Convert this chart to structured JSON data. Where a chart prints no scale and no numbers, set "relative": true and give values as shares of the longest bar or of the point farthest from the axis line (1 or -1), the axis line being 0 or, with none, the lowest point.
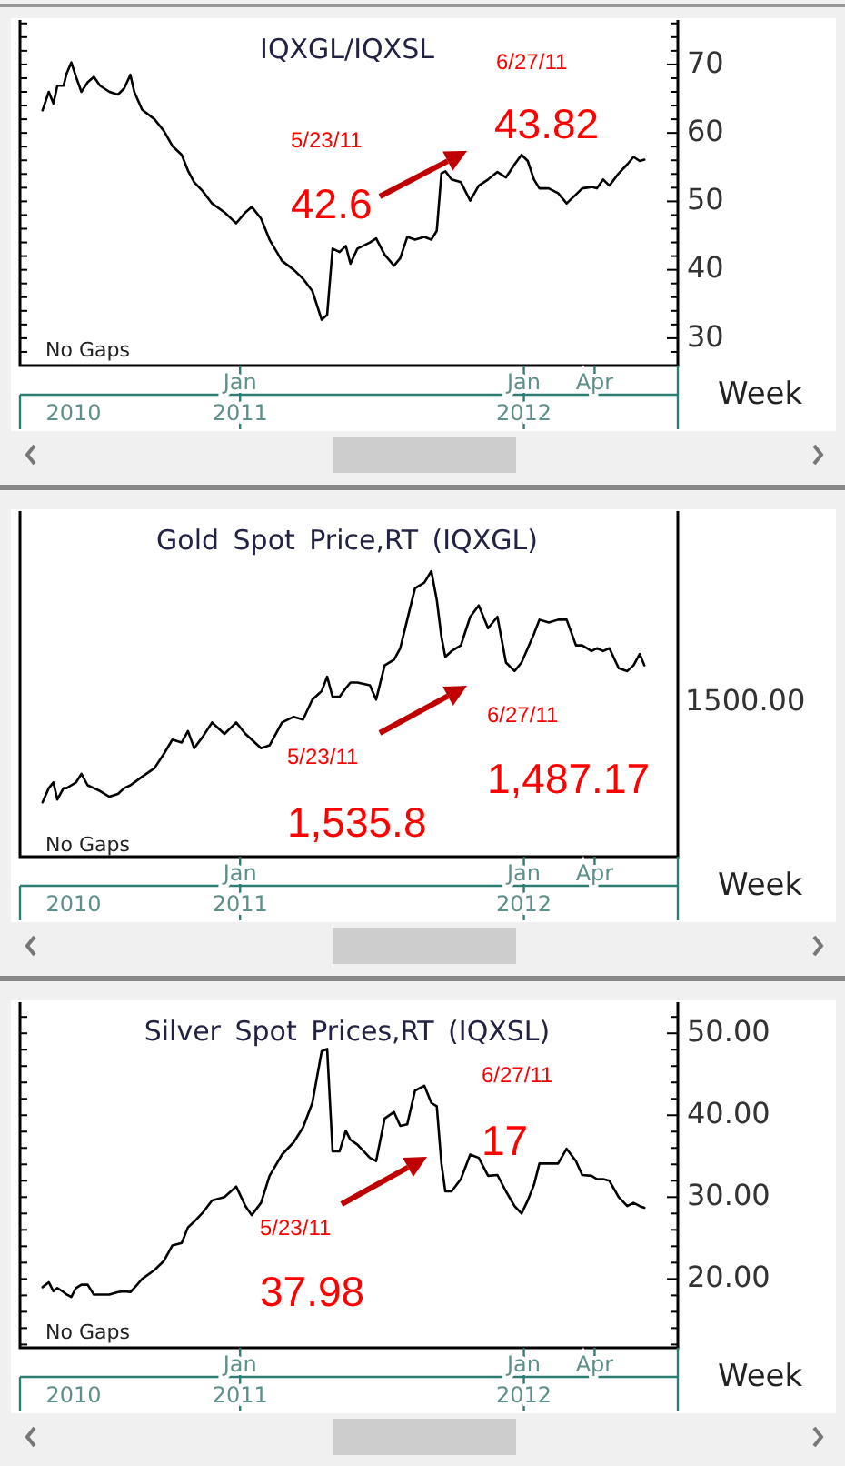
{
  "chart_data": [
    {
      "type": "line",
      "title": "IQXGL/IQXSL",
      "xlabel": "Week",
      "color": "#000000",
      "x": [
        "2010-04-22",
        "2010-04-30",
        "2010-05-06",
        "2010-05-11",
        "2010-05-19",
        "2010-05-23",
        "2010-05-29",
        "2010-06-04",
        "2010-06-11",
        "2010-06-19",
        "2010-06-27",
        "2010-07-05",
        "2010-07-17",
        "2010-07-28",
        "2010-08-05",
        "2010-08-13",
        "2010-08-18",
        "2010-08-28",
        "2010-09-13",
        "2010-09-25",
        "2010-10-06",
        "2010-10-18",
        "2010-10-26",
        "2010-11-03",
        "2010-11-14",
        "2010-11-26",
        "2010-12-12",
        "2010-12-27",
        "2011-01-08",
        "2011-01-16",
        "2011-01-28",
        "2011-02-08",
        "2011-02-24",
        "2011-03-11",
        "2011-03-23",
        "2011-04-04",
        "2011-04-16",
        "2011-04-23",
        "2011-04-30",
        "2011-05-09",
        "2011-05-17",
        "2011-05-23",
        "2011-06-01",
        "2011-06-17",
        "2011-06-25",
        "2011-07-06",
        "2011-07-18",
        "2011-07-26",
        "2011-08-04",
        "2011-08-14",
        "2011-08-26",
        "2011-09-04",
        "2011-09-11",
        "2011-09-17",
        "2011-09-22",
        "2011-09-30",
        "2011-10-12",
        "2011-10-24",
        "2011-11-04",
        "2011-11-16",
        "2011-11-28",
        "2011-12-09",
        "2011-12-20",
        "2011-12-29",
        "2012-01-06",
        "2012-01-14",
        "2012-01-21",
        "2012-02-02",
        "2012-02-14",
        "2012-02-25",
        "2012-03-08",
        "2012-03-16",
        "2012-03-28",
        "2012-04-04",
        "2012-04-12",
        "2012-04-20",
        "2012-05-02",
        "2012-05-13",
        "2012-05-21",
        "2012-05-29",
        "2012-06-04"
      ],
      "values": [
        63.3,
        66.0,
        64.3,
        66.9,
        66.9,
        68.7,
        70.3,
        68.2,
        66.0,
        67.4,
        68.2,
        66.9,
        66.0,
        65.6,
        66.5,
        68.5,
        66.0,
        63.4,
        62.0,
        60.3,
        58.1,
        56.8,
        54.5,
        52.8,
        51.5,
        49.7,
        48.4,
        46.8,
        48.4,
        49.2,
        47.5,
        44.4,
        41.3,
        40.0,
        38.7,
        36.9,
        32.7,
        33.4,
        43.1,
        42.6,
        43.5,
        40.9,
        43.1,
        44.0,
        44.6,
        42.2,
        40.6,
        41.7,
        44.8,
        44.4,
        44.8,
        44.4,
        45.7,
        54.1,
        54.4,
        53.2,
        52.8,
        50.1,
        52.3,
        53.2,
        54.3,
        53.5,
        55.4,
        56.8,
        55.9,
        53.2,
        51.9,
        51.9,
        51.2,
        49.7,
        51.0,
        51.9,
        52.1,
        51.9,
        53.2,
        52.3,
        54.1,
        55.4,
        56.5,
        55.9,
        56.1
      ],
      "xlim": [
        "2010-03-24",
        "2012-07-17"
      ],
      "xticks": [
        {
          "value": "2011-01-01",
          "label": "Jan"
        },
        {
          "value": "2012-01-01",
          "label": "Jan"
        },
        {
          "value": "2012-04-01",
          "label": "Apr"
        }
      ],
      "x2lim": [
        "2010-03-24",
        "2012-07-17"
      ],
      "x2ticks": [
        {
          "value": "2010-06-01",
          "label": "2010"
        },
        {
          "value": "2011-01-01",
          "label": "2011"
        },
        {
          "value": "2012-01-01",
          "label": "2012"
        }
      ],
      "ylim": [
        26,
        76.5
      ],
      "yticks": [
        {
          "value": 28,
          "label": null
        },
        30,
        {
          "value": 32,
          "label": null
        },
        {
          "value": 34,
          "label": null
        },
        {
          "value": 36,
          "label": null
        },
        {
          "value": 38,
          "label": null
        },
        40,
        {
          "value": 42,
          "label": null
        },
        {
          "value": 44,
          "label": null
        },
        {
          "value": 46,
          "label": null
        },
        {
          "value": 48,
          "label": null
        },
        50,
        {
          "value": 52,
          "label": null
        },
        {
          "value": 54,
          "label": null
        },
        {
          "value": 56,
          "label": null
        },
        {
          "value": 58,
          "label": null
        },
        60,
        {
          "value": 62,
          "label": null
        },
        {
          "value": 64,
          "label": null
        },
        {
          "value": 66,
          "label": null
        },
        {
          "value": 68,
          "label": null
        },
        70,
        {
          "value": 72,
          "label": null
        },
        {
          "value": 74,
          "label": null
        },
        {
          "value": 76,
          "label": null
        }
      ],
      "annotations": [
        "No Gaps",
        "5/23/11",
        "42.6",
        "6/27/11",
        "43.82"
      ]
    },
    {
      "type": "line",
      "title": "Gold Spot Price,RT (IQXGL)",
      "xlabel": "Week",
      "color": "#000000",
      "relative": true,
      "x": [
        "2010-04-22",
        "2010-04-30",
        "2010-05-06",
        "2010-05-11",
        "2010-05-19",
        "2010-05-23",
        "2010-05-29",
        "2010-06-04",
        "2010-06-11",
        "2010-06-19",
        "2010-06-27",
        "2010-07-05",
        "2010-07-17",
        "2010-07-28",
        "2010-08-05",
        "2010-08-13",
        "2010-08-18",
        "2010-08-28",
        "2010-09-13",
        "2010-09-25",
        "2010-10-06",
        "2010-10-18",
        "2010-10-26",
        "2010-11-03",
        "2010-11-14",
        "2010-11-26",
        "2010-12-12",
        "2010-12-27",
        "2011-01-08",
        "2011-01-16",
        "2011-01-28",
        "2011-02-08",
        "2011-02-24",
        "2011-03-11",
        "2011-03-23",
        "2011-04-04",
        "2011-04-16",
        "2011-04-23",
        "2011-04-30",
        "2011-05-09",
        "2011-05-17",
        "2011-05-23",
        "2011-06-01",
        "2011-06-17",
        "2011-06-25",
        "2011-07-06",
        "2011-07-18",
        "2011-07-26",
        "2011-08-04",
        "2011-08-14",
        "2011-08-26",
        "2011-09-04",
        "2011-09-11",
        "2011-09-17",
        "2011-09-22",
        "2011-09-30",
        "2011-10-12",
        "2011-10-24",
        "2011-11-04",
        "2011-11-16",
        "2011-11-28",
        "2011-12-09",
        "2011-12-20",
        "2011-12-29",
        "2012-01-06",
        "2012-01-14",
        "2012-01-21",
        "2012-02-02",
        "2012-02-14",
        "2012-02-25",
        "2012-03-08",
        "2012-03-16",
        "2012-03-28",
        "2012-04-04",
        "2012-04-12",
        "2012-04-20",
        "2012-05-02",
        "2012-05-13",
        "2012-05-21",
        "2012-05-29",
        "2012-06-04"
      ],
      "values": [
        0.19,
        0.24,
        0.26,
        0.2,
        0.24,
        0.24,
        0.25,
        0.26,
        0.29,
        0.25,
        0.24,
        0.23,
        0.21,
        0.22,
        0.24,
        0.25,
        0.26,
        0.28,
        0.31,
        0.36,
        0.41,
        0.4,
        0.44,
        0.38,
        0.42,
        0.47,
        0.43,
        0.47,
        0.43,
        0.41,
        0.38,
        0.39,
        0.47,
        0.49,
        0.48,
        0.55,
        0.58,
        0.63,
        0.56,
        0.56,
        0.59,
        0.61,
        0.61,
        0.6,
        0.55,
        0.67,
        0.69,
        0.73,
        0.83,
        0.94,
        0.96,
        1,
        0.9,
        0.77,
        0.7,
        0.72,
        0.74,
        0.84,
        0.88,
        0.8,
        0.84,
        0.68,
        0.65,
        0.68,
        0.73,
        0.78,
        0.83,
        0.82,
        0.83,
        0.83,
        0.74,
        0.74,
        0.72,
        0.73,
        0.72,
        0.73,
        0.66,
        0.65,
        0.67,
        0.71,
        0.67
      ],
      "xlim": [
        "2010-03-24",
        "2012-07-17"
      ],
      "xticks": [
        {
          "value": "2011-01-01",
          "label": "Jan"
        },
        {
          "value": "2012-01-01",
          "label": "Jan"
        },
        {
          "value": "2012-04-01",
          "label": "Apr"
        }
      ],
      "x2lim": [
        "2010-03-24",
        "2012-07-17"
      ],
      "x2ticks": [
        {
          "value": "2010-06-01",
          "label": "2010"
        },
        {
          "value": "2011-01-01",
          "label": "2011"
        },
        {
          "value": "2012-01-01",
          "label": "2012"
        }
      ],
      "annotations": [
        "No Gaps",
        "5/23/11",
        "1,535.8",
        "6/27/11",
        "1,487.17",
        "1500.00"
      ]
    },
    {
      "type": "line",
      "title": "Silver Spot Prices,RT (IQXSL)",
      "xlabel": "Week",
      "color": "#000000",
      "x": [
        "2010-04-22",
        "2010-04-30",
        "2010-05-06",
        "2010-05-11",
        "2010-05-19",
        "2010-05-23",
        "2010-05-29",
        "2010-06-04",
        "2010-06-11",
        "2010-06-19",
        "2010-06-27",
        "2010-07-05",
        "2010-07-17",
        "2010-07-28",
        "2010-08-05",
        "2010-08-13",
        "2010-08-18",
        "2010-08-28",
        "2010-09-13",
        "2010-09-25",
        "2010-10-06",
        "2010-10-18",
        "2010-10-26",
        "2010-11-03",
        "2010-11-14",
        "2010-11-26",
        "2010-12-12",
        "2010-12-27",
        "2011-01-08",
        "2011-01-16",
        "2011-01-28",
        "2011-02-08",
        "2011-02-24",
        "2011-03-11",
        "2011-03-23",
        "2011-04-04",
        "2011-04-16",
        "2011-04-23",
        "2011-04-30",
        "2011-05-09",
        "2011-05-17",
        "2011-05-23",
        "2011-06-01",
        "2011-06-17",
        "2011-06-25",
        "2011-07-06",
        "2011-07-18",
        "2011-07-26",
        "2011-08-04",
        "2011-08-14",
        "2011-08-26",
        "2011-09-04",
        "2011-09-11",
        "2011-09-17",
        "2011-09-22",
        "2011-09-30",
        "2011-10-12",
        "2011-10-24",
        "2011-11-04",
        "2011-11-16",
        "2011-11-28",
        "2011-12-09",
        "2011-12-20",
        "2011-12-29",
        "2012-01-06",
        "2012-01-14",
        "2012-01-21",
        "2012-02-02",
        "2012-02-14",
        "2012-02-25",
        "2012-03-08",
        "2012-03-16",
        "2012-03-28",
        "2012-04-04",
        "2012-04-12",
        "2012-04-20",
        "2012-05-02",
        "2012-05-13",
        "2012-05-21",
        "2012-05-29",
        "2012-06-04"
      ],
      "values": [
        19.0,
        19.6,
        18.5,
        18.9,
        18.4,
        18.1,
        17.8,
        18.9,
        19.3,
        19.3,
        18.1,
        18.1,
        18.1,
        18.4,
        18.5,
        18.4,
        18.9,
        20.0,
        21.1,
        22.2,
        24.1,
        24.4,
        26.3,
        27.0,
        28.1,
        29.6,
        30.0,
        31.3,
        28.9,
        27.8,
        29.3,
        32.6,
        35.2,
        36.7,
        38.5,
        41.5,
        47.8,
        48.1,
        35.6,
        35.6,
        38.1,
        37.0,
        36.4,
        34.8,
        34.4,
        39.6,
        40.4,
        38.7,
        38.9,
        43.0,
        43.6,
        41.5,
        41.1,
        34.1,
        30.7,
        30.7,
        32.2,
        35.2,
        34.8,
        32.6,
        32.7,
        30.7,
        28.9,
        28.0,
        29.6,
        31.5,
        34.1,
        34.1,
        34.1,
        35.9,
        34.4,
        32.7,
        32.6,
        32.2,
        32.2,
        32.0,
        30.0,
        28.9,
        29.3,
        28.9,
        28.7
      ],
      "xlim": [
        "2010-03-24",
        "2012-07-17"
      ],
      "xticks": [
        {
          "value": "2011-01-01",
          "label": "Jan"
        },
        {
          "value": "2012-01-01",
          "label": "Jan"
        },
        {
          "value": "2012-04-01",
          "label": "Apr"
        }
      ],
      "x2lim": [
        "2010-03-24",
        "2012-07-17"
      ],
      "x2ticks": [
        {
          "value": "2010-06-01",
          "label": "2010"
        },
        {
          "value": "2011-01-01",
          "label": "2011"
        },
        {
          "value": "2012-01-01",
          "label": "2012"
        }
      ],
      "ylim": [
        11.6,
        53.8
      ],
      "yticks": [
        {
          "value": 12,
          "label": null
        },
        {
          "value": 14,
          "label": null
        },
        {
          "value": 16,
          "label": null
        },
        {
          "value": 18,
          "label": null
        },
        {
          "value": 20,
          "label": "20.00"
        },
        {
          "value": 22,
          "label": null
        },
        {
          "value": 24,
          "label": null
        },
        {
          "value": 26,
          "label": null
        },
        {
          "value": 28,
          "label": null
        },
        {
          "value": 30,
          "label": "30.00"
        },
        {
          "value": 32,
          "label": null
        },
        {
          "value": 34,
          "label": null
        },
        {
          "value": 36,
          "label": null
        },
        {
          "value": 38,
          "label": null
        },
        {
          "value": 40,
          "label": "40.00"
        },
        {
          "value": 42,
          "label": null
        },
        {
          "value": 44,
          "label": null
        },
        {
          "value": 46,
          "label": null
        },
        {
          "value": 48,
          "label": null
        },
        {
          "value": 50,
          "label": "50.00"
        },
        {
          "value": 52,
          "label": null
        }
      ],
      "annotations": [
        "No Gaps",
        "5/23/11",
        "37.98",
        "6/27/11",
        "17"
      ]
    }
  ]
}
